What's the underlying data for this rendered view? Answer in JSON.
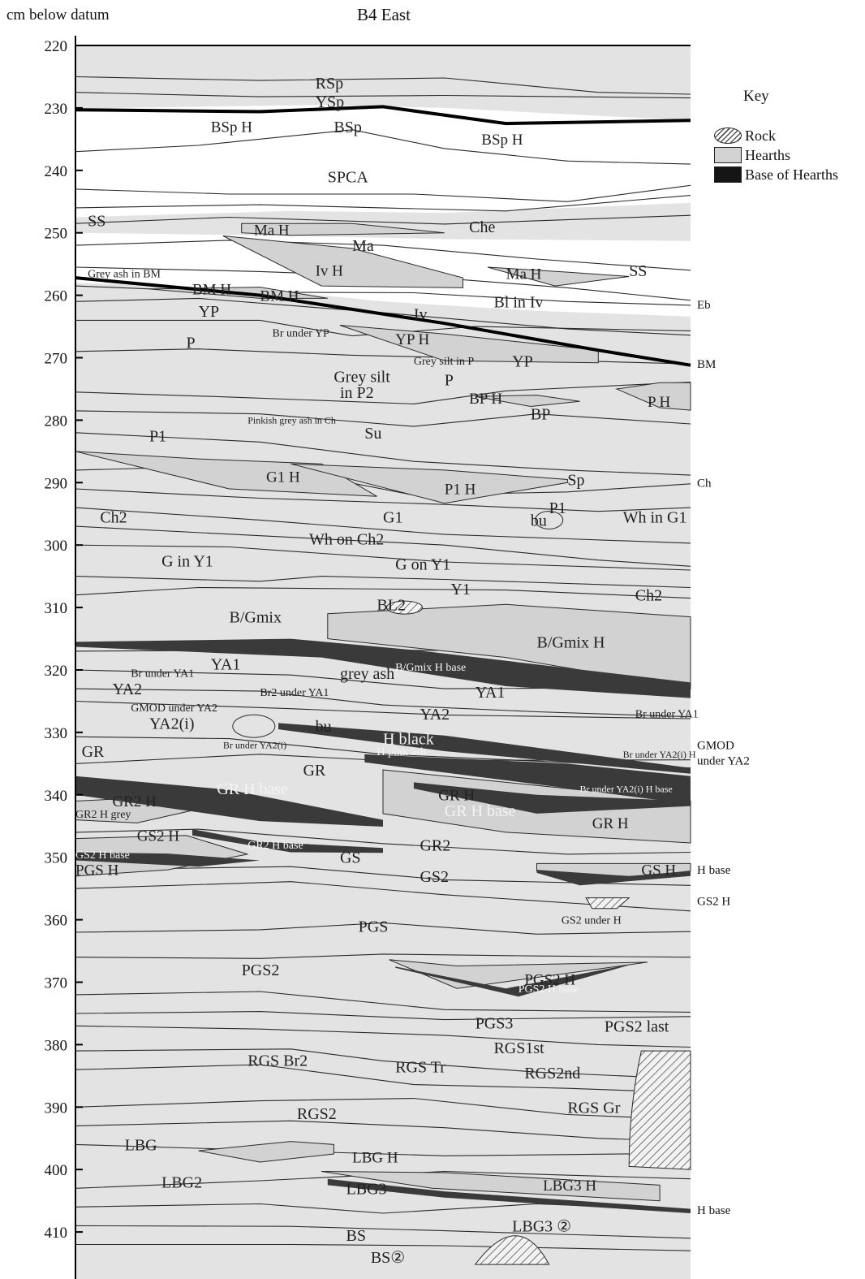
{
  "header": {
    "y_axis_label": "cm below datum",
    "title": "B4 East"
  },
  "axis": {
    "depth_range_cm": [
      220,
      415
    ],
    "ticks": [
      "220",
      "230",
      "240",
      "250",
      "260",
      "270",
      "280",
      "290",
      "300",
      "310",
      "320",
      "330",
      "340",
      "350",
      "360",
      "370",
      "380",
      "390",
      "400",
      "410"
    ]
  },
  "key": {
    "title": "Key",
    "items": [
      {
        "label": "Rock",
        "symbol": "hatched-oval"
      },
      {
        "label": "Hearths",
        "symbol": "light-grey-box"
      },
      {
        "label": "Base of Hearths",
        "symbol": "black-box"
      }
    ]
  },
  "colors": {
    "deposit": "#e3e3e3",
    "hearth": "#d2d2d2",
    "hearth_base": "#3a3a3a",
    "white_layer": "#ffffff",
    "boundary": "#2a2a2a"
  },
  "layer_labels": [
    {
      "text": "RSp",
      "depth": 226,
      "h": 0.39
    },
    {
      "text": "YSp",
      "depth": 229,
      "h": 0.39
    },
    {
      "text": "BSp H",
      "depth": 233,
      "h": 0.22
    },
    {
      "text": "BSp",
      "depth": 233,
      "h": 0.42
    },
    {
      "text": "BSp H",
      "depth": 235,
      "h": 0.66
    },
    {
      "text": "SPCA",
      "depth": 241,
      "h": 0.41
    },
    {
      "text": "SS",
      "depth": 248,
      "h": 0.02
    },
    {
      "text": "Ma H",
      "depth": 249.5,
      "h": 0.29
    },
    {
      "text": "Che",
      "depth": 249,
      "h": 0.64
    },
    {
      "text": "Ma",
      "depth": 252,
      "h": 0.45
    },
    {
      "text": "Grey ash in BM",
      "depth": 256.5,
      "h": 0.02
    },
    {
      "text": "BM H",
      "depth": 259,
      "h": 0.19
    },
    {
      "text": "BM H",
      "depth": 260,
      "h": 0.3
    },
    {
      "text": "Iv H",
      "depth": 256,
      "h": 0.39
    },
    {
      "text": "Ma H",
      "depth": 256.5,
      "h": 0.7
    },
    {
      "text": "SS",
      "depth": 256,
      "h": 0.9
    },
    {
      "text": "Bl in Iv",
      "depth": 261,
      "h": 0.68
    },
    {
      "text": "Iv",
      "depth": 263,
      "h": 0.55
    },
    {
      "text": "YP",
      "depth": 262.5,
      "h": 0.2
    },
    {
      "text": "Br under YP",
      "depth": 266,
      "h": 0.32
    },
    {
      "text": "YP H",
      "depth": 267,
      "h": 0.52
    },
    {
      "text": "P",
      "depth": 267.5,
      "h": 0.18
    },
    {
      "text": "Grey silt in P",
      "depth": 270.5,
      "h": 0.55
    },
    {
      "text": "YP",
      "depth": 270.5,
      "h": 0.71
    },
    {
      "text": "Grey silt",
      "depth": 273,
      "h": 0.42
    },
    {
      "text": "P",
      "depth": 273.5,
      "h": 0.6
    },
    {
      "text": "in P2",
      "depth": 275.5,
      "h": 0.43
    },
    {
      "text": "BP H",
      "depth": 276.5,
      "h": 0.64
    },
    {
      "text": "P H",
      "depth": 277,
      "h": 0.93
    },
    {
      "text": "Pinkish grey ash in Ch",
      "depth": 280,
      "h": 0.28
    },
    {
      "text": "BP",
      "depth": 279,
      "h": 0.74
    },
    {
      "text": "P1",
      "depth": 282.5,
      "h": 0.12
    },
    {
      "text": "Su",
      "depth": 282,
      "h": 0.47
    },
    {
      "text": "G1 H",
      "depth": 289,
      "h": 0.31
    },
    {
      "text": "Sp",
      "depth": 289.5,
      "h": 0.8
    },
    {
      "text": "P1 H",
      "depth": 291,
      "h": 0.6
    },
    {
      "text": "P1",
      "depth": 294,
      "h": 0.77
    },
    {
      "text": "G1",
      "depth": 295.5,
      "h": 0.5
    },
    {
      "text": "Ch2",
      "depth": 295.5,
      "h": 0.04
    },
    {
      "text": "bu",
      "depth": 296,
      "h": 0.74
    },
    {
      "text": "Wh in G1",
      "depth": 295.5,
      "h": 0.89
    },
    {
      "text": "Wh on Ch2",
      "depth": 299,
      "h": 0.38
    },
    {
      "text": "G in Y1",
      "depth": 302.5,
      "h": 0.14
    },
    {
      "text": "G on Y1",
      "depth": 303,
      "h": 0.52
    },
    {
      "text": "Y1",
      "depth": 307,
      "h": 0.61
    },
    {
      "text": "Ch2",
      "depth": 308,
      "h": 0.91
    },
    {
      "text": "BL2",
      "depth": 309.5,
      "h": 0.49
    },
    {
      "text": "B/Gmix",
      "depth": 311.5,
      "h": 0.25
    },
    {
      "text": "B/Gmix H",
      "depth": 315.5,
      "h": 0.75
    },
    {
      "text": "B/Gmix H base",
      "depth": 319.5,
      "h": 0.52
    },
    {
      "text": "YA1",
      "depth": 319,
      "h": 0.22
    },
    {
      "text": "grey ash",
      "depth": 320.5,
      "h": 0.43
    },
    {
      "text": "Br under YA1",
      "depth": 320.5,
      "h": 0.09
    },
    {
      "text": "YA2",
      "depth": 323,
      "h": 0.06
    },
    {
      "text": "Br2 under YA1",
      "depth": 323.5,
      "h": 0.3
    },
    {
      "text": "YA1",
      "depth": 323.5,
      "h": 0.65
    },
    {
      "text": "GMOD under YA2",
      "depth": 326,
      "h": 0.09
    },
    {
      "text": "YA2",
      "depth": 327,
      "h": 0.56
    },
    {
      "text": "Br under YA1",
      "depth": 327,
      "h": 0.91
    },
    {
      "text": "YA2(i)",
      "depth": 328.5,
      "h": 0.12
    },
    {
      "text": "bu",
      "depth": 329,
      "h": 0.39
    },
    {
      "text": "H black",
      "depth": 331,
      "h": 0.5
    },
    {
      "text": "Br under YA2(i)",
      "depth": 332,
      "h": 0.24
    },
    {
      "text": "H pink ash",
      "depth": 333,
      "h": 0.49
    },
    {
      "text": "GR",
      "depth": 333,
      "h": 0.01
    },
    {
      "text": "Br under YA2(i) H",
      "depth": 333.5,
      "h": 0.89
    },
    {
      "text": "GR",
      "depth": 336,
      "h": 0.37
    },
    {
      "text": "GR H base",
      "depth": 339,
      "h": 0.23
    },
    {
      "text": "Br under YA2(i) H base",
      "depth": 339,
      "h": 0.82
    },
    {
      "text": "GR H",
      "depth": 340,
      "h": 0.59
    },
    {
      "text": "GR2 H",
      "depth": 341,
      "h": 0.06
    },
    {
      "text": "GR2 H grey",
      "depth": 343,
      "h": 0.0
    },
    {
      "text": "GR H base",
      "depth": 342.5,
      "h": 0.6
    },
    {
      "text": "GR H",
      "depth": 344.5,
      "h": 0.84
    },
    {
      "text": "GS2 H",
      "depth": 346.5,
      "h": 0.1
    },
    {
      "text": "GR2 H base",
      "depth": 348,
      "h": 0.28
    },
    {
      "text": "GR2",
      "depth": 348,
      "h": 0.56
    },
    {
      "text": "GS2 H base",
      "depth": 349.5,
      "h": 0.0
    },
    {
      "text": "GS",
      "depth": 350,
      "h": 0.43
    },
    {
      "text": "PGS H",
      "depth": 352,
      "h": 0.0
    },
    {
      "text": "GS H",
      "depth": 352,
      "h": 0.92
    },
    {
      "text": "GS2",
      "depth": 353,
      "h": 0.56
    },
    {
      "text": "GS2 under H",
      "depth": 360,
      "h": 0.79
    },
    {
      "text": "PGS",
      "depth": 361,
      "h": 0.46
    },
    {
      "text": "PGS2",
      "depth": 368,
      "h": 0.27
    },
    {
      "text": "PGS2 H",
      "depth": 369.5,
      "h": 0.73
    },
    {
      "text": "PGS2 H base",
      "depth": 371,
      "h": 0.72
    },
    {
      "text": "PGS3",
      "depth": 376.5,
      "h": 0.65
    },
    {
      "text": "PGS2 last",
      "depth": 377,
      "h": 0.86
    },
    {
      "text": "RGS1st",
      "depth": 380.5,
      "h": 0.68
    },
    {
      "text": "RGS Br2",
      "depth": 382.5,
      "h": 0.28
    },
    {
      "text": "RGS Tr",
      "depth": 383.5,
      "h": 0.52
    },
    {
      "text": "RGS2nd",
      "depth": 384.5,
      "h": 0.73
    },
    {
      "text": "RGS Gr",
      "depth": 390,
      "h": 0.8
    },
    {
      "text": "RGS2",
      "depth": 391,
      "h": 0.36
    },
    {
      "text": "LBG",
      "depth": 396,
      "h": 0.08
    },
    {
      "text": "LBG H",
      "depth": 398,
      "h": 0.45
    },
    {
      "text": "LBG2",
      "depth": 402,
      "h": 0.14
    },
    {
      "text": "LBG3 H",
      "depth": 402.5,
      "h": 0.76
    },
    {
      "text": "LBG3",
      "depth": 403,
      "h": 0.44
    },
    {
      "text": "LBG3 ②",
      "depth": 409,
      "h": 0.71
    },
    {
      "text": "BS",
      "depth": 410.5,
      "h": 0.44
    },
    {
      "text": "BS②",
      "depth": 414,
      "h": 0.48
    }
  ],
  "edge_labels": [
    {
      "text": "Eb",
      "depth": 261.5
    },
    {
      "text": "BM",
      "depth": 271
    },
    {
      "text": "Ch",
      "depth": 290
    },
    {
      "text": "GMOD",
      "depth": 332
    },
    {
      "text": "under YA2",
      "depth": 334.5
    },
    {
      "text": "H base",
      "depth": 352
    },
    {
      "text": "GS2 H",
      "depth": 357
    },
    {
      "text": "H base",
      "depth": 406.5
    }
  ]
}
